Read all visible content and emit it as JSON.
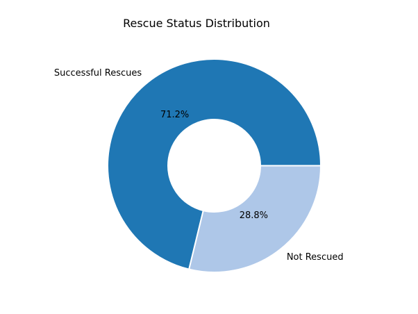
{
  "chart_data": {
    "type": "pie",
    "subtype": "donut",
    "title": "Rescue Status Distribution",
    "slices": [
      {
        "label": "Successful Rescues",
        "value": 71.2,
        "pct_label": "71.2%",
        "color": "#1f77b4"
      },
      {
        "label": "Not Rescued",
        "value": 28.8,
        "pct_label": "28.8%",
        "color": "#aec7e8"
      }
    ],
    "startangle": 0,
    "counterclock": true,
    "inner_radius_ratio": 0.43,
    "pctdistance": 0.6,
    "labeldistance": 1.1,
    "edge_color": "#ffffff",
    "edge_width": 2,
    "text_color": "#000000",
    "background": "#ffffff",
    "legend": "none",
    "grid": false
  }
}
